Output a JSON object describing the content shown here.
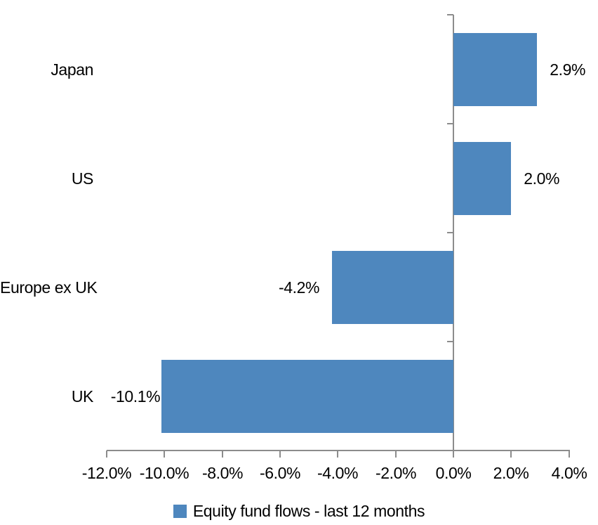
{
  "chart_data": {
    "type": "bar",
    "orientation": "horizontal",
    "title": "",
    "xlabel": "",
    "ylabel": "",
    "categories": [
      "Japan",
      "US",
      "Europe ex UK",
      "UK"
    ],
    "series": [
      {
        "name": "Equity fund flows - last 12 months",
        "values": [
          2.9,
          2.0,
          -4.2,
          -10.1
        ],
        "data_labels": [
          "2.9%",
          "2.0%",
          "-4.2%",
          "-10.1%"
        ]
      }
    ],
    "xlim": [
      -12,
      4
    ],
    "xtick_step": 2,
    "xtick_labels": [
      "-12.0%",
      "-10.0%",
      "-8.0%",
      "-6.0%",
      "-4.0%",
      "-2.0%",
      "0.0%",
      "2.0%",
      "4.0%"
    ],
    "grid": false,
    "legend_position": "bottom",
    "colors": {
      "bar": "#4E87BE",
      "axis": "#8C8C8C",
      "text": "#000000",
      "background": "#FFFFFF"
    },
    "legend": [
      {
        "label": "Equity fund flows - last 12 months",
        "color": "#4E87BE"
      }
    ]
  }
}
